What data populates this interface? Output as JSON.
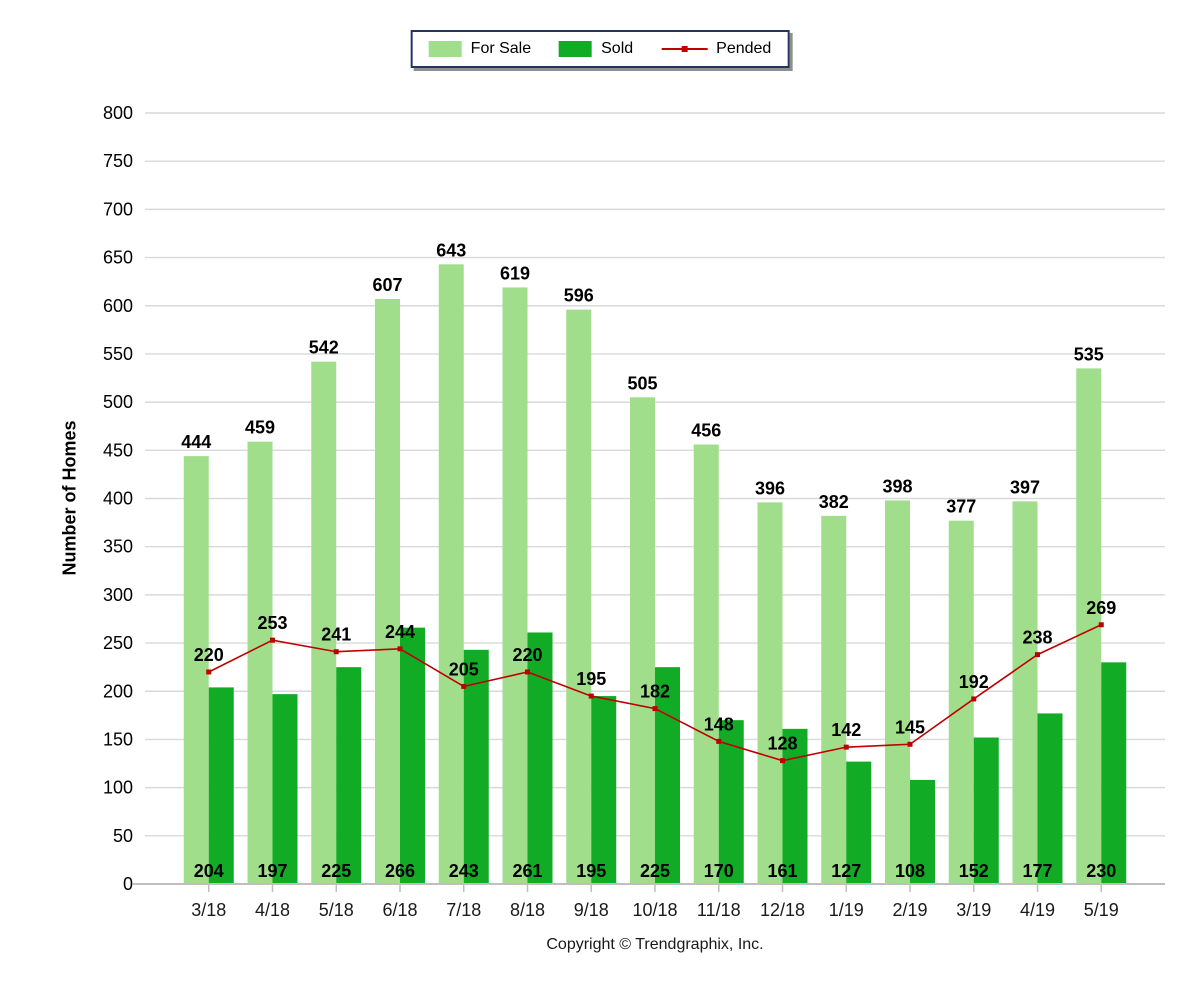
{
  "legend": {
    "items": [
      {
        "label": "For Sale",
        "type": "bar",
        "color": "#a0de8c"
      },
      {
        "label": "Sold",
        "type": "bar",
        "color": "#11ab26"
      },
      {
        "label": "Pended",
        "type": "line",
        "color": "#c00000"
      }
    ]
  },
  "footer": {
    "copyright": "Copyright © Trendgraphix, Inc."
  },
  "chart_data": {
    "type": "bar",
    "title": "",
    "xlabel": "",
    "ylabel": "Number of Homes",
    "ylim": [
      0,
      800
    ],
    "ytick_step": 50,
    "grid": true,
    "legend_position": "top-center",
    "categories": [
      "3/18",
      "4/18",
      "5/18",
      "6/18",
      "7/18",
      "8/18",
      "9/18",
      "10/18",
      "11/18",
      "12/18",
      "1/19",
      "2/19",
      "3/19",
      "4/19",
      "5/19"
    ],
    "series": [
      {
        "name": "For Sale",
        "type": "bar",
        "color": "#a0de8c",
        "values": [
          444,
          459,
          542,
          607,
          643,
          619,
          596,
          505,
          456,
          396,
          382,
          398,
          377,
          397,
          535
        ]
      },
      {
        "name": "Sold",
        "type": "bar",
        "color": "#11ab26",
        "values": [
          204,
          197,
          225,
          266,
          243,
          261,
          195,
          225,
          170,
          161,
          127,
          108,
          152,
          177,
          230
        ]
      },
      {
        "name": "Pended",
        "type": "line",
        "color": "#c00000",
        "values": [
          220,
          253,
          241,
          244,
          205,
          220,
          195,
          182,
          148,
          128,
          142,
          145,
          192,
          238,
          269
        ]
      }
    ]
  },
  "style": {
    "grid_color": "#d9d9d9",
    "axis_color": "#bfbfbf",
    "label_color": "#000000",
    "month_label_color": "#1a1a1a"
  }
}
